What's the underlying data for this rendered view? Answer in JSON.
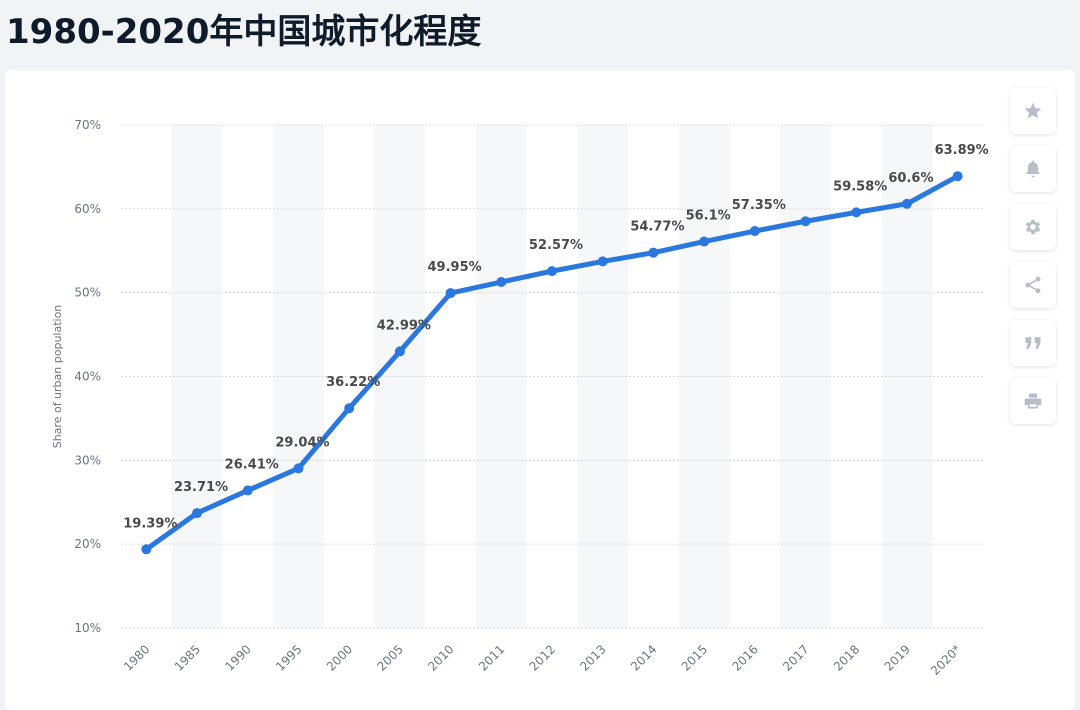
{
  "page": {
    "title": "1980-2020年中国城市化程度"
  },
  "toolbar": [
    {
      "name": "star-icon",
      "label": "favorite"
    },
    {
      "name": "bell-icon",
      "label": "notifications"
    },
    {
      "name": "gear-icon",
      "label": "settings"
    },
    {
      "name": "share-icon",
      "label": "share"
    },
    {
      "name": "quote-icon",
      "label": "cite"
    },
    {
      "name": "print-icon",
      "label": "print"
    }
  ],
  "chart_data": {
    "type": "line",
    "title": "",
    "xlabel": "",
    "ylabel": "Share of urban population",
    "categories": [
      "1980",
      "1985",
      "1990",
      "1995",
      "2000",
      "2005",
      "2010",
      "2011",
      "2012",
      "2013",
      "2014",
      "2015",
      "2016",
      "2017",
      "2018",
      "2019",
      "2020*"
    ],
    "series": [
      {
        "values": [
          19.39,
          23.71,
          26.41,
          29.04,
          36.22,
          42.99,
          49.95,
          51.27,
          52.57,
          53.73,
          54.77,
          56.1,
          57.35,
          58.52,
          59.58,
          60.6,
          63.89
        ],
        "data_labels": [
          "19.39%",
          "23.71%",
          "26.41%",
          "29.04%",
          "36.22%",
          "42.99%",
          "49.95%",
          "",
          "52.57%",
          "",
          "54.77%",
          "56.1%",
          "57.35%",
          "",
          "59.58%",
          "60.6%",
          "63.89%"
        ],
        "color": "#2b77e0"
      }
    ],
    "ylim": [
      10,
      70
    ],
    "yticks": [
      10,
      20,
      30,
      40,
      50,
      60,
      70
    ],
    "ytick_labels": [
      "10%",
      "20%",
      "30%",
      "40%",
      "50%",
      "60%",
      "70%"
    ],
    "grid": true,
    "band_color": "#f6f7f8"
  }
}
